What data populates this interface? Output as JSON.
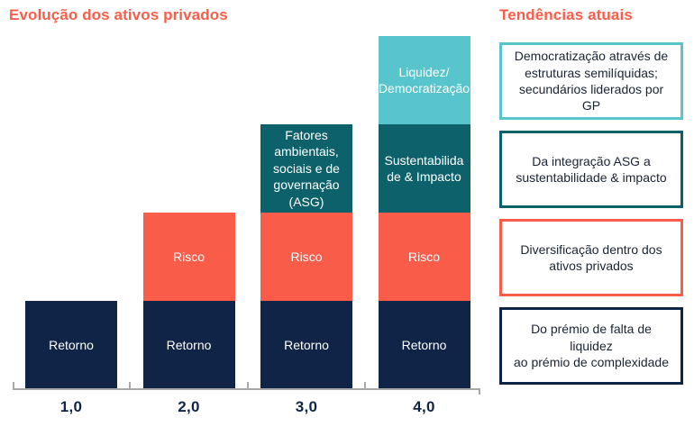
{
  "page": {
    "left_title": "Evolução dos ativos privados",
    "right_title": "Tendências atuais"
  },
  "colors": {
    "orange": "#F95D49",
    "navy": "#0F2446",
    "teal_dark": "#0D616A",
    "teal_light": "#58C5CC",
    "axis": "#A9A9A9",
    "title_text": "#F95D49",
    "axis_label_text": "#0F2446",
    "box_text": "#1A2433",
    "segment_text": "#FFFFFF"
  },
  "chart_data": {
    "type": "bar",
    "subtype": "stacked",
    "title": "Evolução dos ativos privados",
    "categories": [
      "1,0",
      "2,0",
      "3,0",
      "4,0"
    ],
    "totals": [
      1,
      2,
      3,
      4
    ],
    "ylim": [
      0,
      4.3
    ],
    "grid": false,
    "legend": "none (labels inside segments)",
    "series": [
      {
        "name": "Retorno",
        "color_key": "navy",
        "values": [
          1,
          1,
          1,
          1
        ]
      },
      {
        "name": "Risco",
        "color_key": "orange",
        "values": [
          0,
          1,
          1,
          1
        ]
      },
      {
        "name": "Fatores ambientais, sociais e de governação (ASG) / Sustentabilidade & Impacto",
        "color_key": "teal_dark",
        "values": [
          0,
          0,
          1,
          1
        ]
      },
      {
        "name": "Liquidez/Democratização",
        "color_key": "teal_light",
        "values": [
          0,
          0,
          0,
          1
        ]
      }
    ],
    "bars": [
      {
        "category": "1,0",
        "segments": [
          {
            "label": "Retorno",
            "value": 1,
            "color_key": "navy"
          }
        ]
      },
      {
        "category": "2,0",
        "segments": [
          {
            "label": "Retorno",
            "value": 1,
            "color_key": "navy"
          },
          {
            "label": "Risco",
            "value": 1,
            "color_key": "orange"
          }
        ]
      },
      {
        "category": "3,0",
        "segments": [
          {
            "label": "Retorno",
            "value": 1,
            "color_key": "navy"
          },
          {
            "label": "Risco",
            "value": 1,
            "color_key": "orange"
          },
          {
            "label": "Fatores\nambientais,\nsociais e de\ngovernação\n(ASG)",
            "value": 1,
            "color_key": "teal_dark"
          }
        ]
      },
      {
        "category": "4,0",
        "segments": [
          {
            "label": "Retorno",
            "value": 1,
            "color_key": "navy"
          },
          {
            "label": "Risco",
            "value": 1,
            "color_key": "orange"
          },
          {
            "label": "Sustentabilida\nde & Impacto",
            "value": 1,
            "color_key": "teal_dark"
          },
          {
            "label": "Liquidez/\nDemocratização",
            "value": 1,
            "color_key": "teal_light"
          }
        ]
      }
    ]
  },
  "trends": {
    "title": "Tendências atuais",
    "items": [
      {
        "text": "Democratização através de\nestruturas semilíquidas;\nsecundários liderados por\nGP",
        "border_color_key": "teal_light"
      },
      {
        "text": "Da integração ASG a\nsustentabilidade & impacto",
        "border_color_key": "teal_dark"
      },
      {
        "text": "Diversificação dentro dos\nativos privados",
        "border_color_key": "orange"
      },
      {
        "text": "Do prémio de falta de\nliquidez\nao prémio de complexidade",
        "border_color_key": "navy"
      }
    ]
  }
}
